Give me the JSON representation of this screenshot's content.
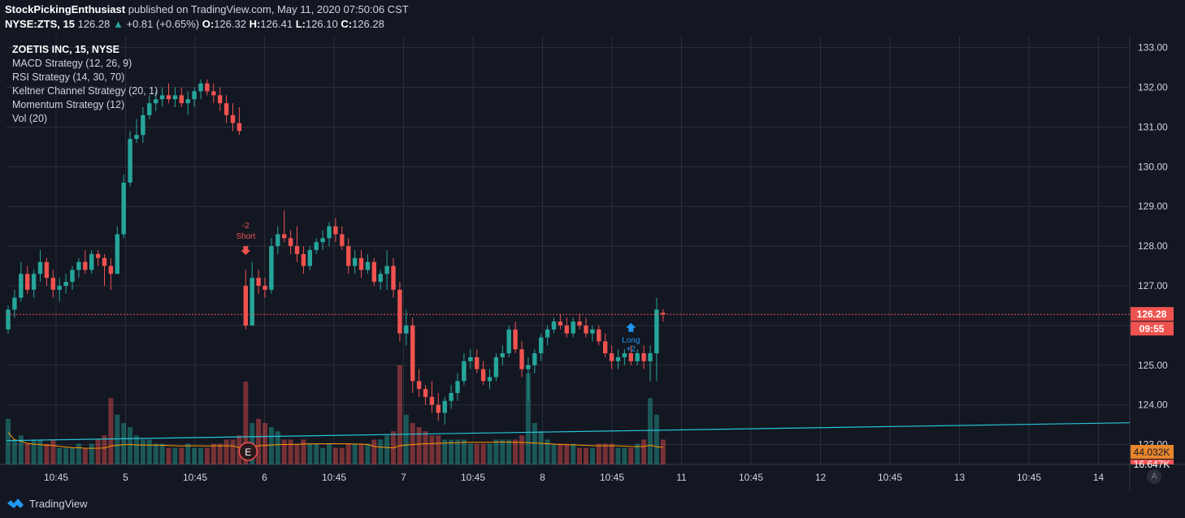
{
  "header": {
    "author": "StockPickingEnthusiast",
    "published_text": "published on TradingView.com, May 11, 2020 07:50:06 CST",
    "symbol": "NYSE:ZTS, 15",
    "last": "126.28",
    "change": "+0.81 (+0.65%)",
    "o_label": "O:",
    "o": "126.32",
    "h_label": "H:",
    "h": "126.41",
    "l_label": "L:",
    "l": "126.10",
    "c_label": "C:",
    "c": "126.28"
  },
  "legend": {
    "title": "ZOETIS INC, 15, NYSE",
    "items": [
      "MACD Strategy (12, 26, 9)",
      "RSI Strategy (14, 30, 70)",
      "Keltner Channel Strategy (20, 1)",
      "Momentum Strategy (12)",
      "Vol (20)"
    ]
  },
  "footer": {
    "brand": "TradingView",
    "settings_button": "A"
  },
  "colors": {
    "background": "#131722",
    "up": "#26a69a",
    "down": "#ef5350",
    "grid": "#2a2e39",
    "trendline": "#26c6da",
    "vol_ma": "#ff9800",
    "long_marker": "#2196f3",
    "short_marker": "#ef5350"
  },
  "chart_data": {
    "type": "candlestick",
    "ylim": [
      122.5,
      133.3
    ],
    "y_ticks": [
      "133.00",
      "132.00",
      "131.00",
      "130.00",
      "129.00",
      "128.00",
      "127.00",
      "126.00",
      "125.00",
      "124.00",
      "123.00"
    ],
    "x_ticks": [
      "10:45",
      "5",
      "10:45",
      "6",
      "10:45",
      "7",
      "10:45",
      "8",
      "10:45",
      "11",
      "10:45",
      "12",
      "10:45",
      "13",
      "10:45",
      "14"
    ],
    "last_price_label": "126.28",
    "countdown_label": "09:55",
    "volume_label": "44.032K",
    "volume_label2": "16.647K",
    "earnings_marker": "E",
    "signals": [
      {
        "type": "short",
        "label": "Short",
        "qty": "-2",
        "at_index": 37,
        "price": 128.0
      },
      {
        "type": "long",
        "label": "Long",
        "qty": "+2",
        "at_index": 97,
        "price": 125.9
      }
    ],
    "trendline": {
      "start_price": 123.1,
      "end_price": 123.55
    },
    "candles": [
      {
        "o": 125.9,
        "h": 126.5,
        "l": 125.8,
        "c": 126.4,
        "v": 0.55
      },
      {
        "o": 126.4,
        "h": 126.9,
        "l": 126.2,
        "c": 126.7,
        "v": 0.3
      },
      {
        "o": 126.7,
        "h": 127.6,
        "l": 126.6,
        "c": 127.3,
        "v": 0.35
      },
      {
        "o": 127.3,
        "h": 127.5,
        "l": 126.8,
        "c": 126.9,
        "v": 0.25
      },
      {
        "o": 126.9,
        "h": 127.4,
        "l": 126.7,
        "c": 127.3,
        "v": 0.3
      },
      {
        "o": 127.3,
        "h": 127.9,
        "l": 127.1,
        "c": 127.6,
        "v": 0.3
      },
      {
        "o": 127.6,
        "h": 127.7,
        "l": 127.0,
        "c": 127.2,
        "v": 0.25
      },
      {
        "o": 127.2,
        "h": 127.4,
        "l": 126.7,
        "c": 126.9,
        "v": 0.3
      },
      {
        "o": 126.9,
        "h": 127.2,
        "l": 126.6,
        "c": 127.0,
        "v": 0.2
      },
      {
        "o": 127.0,
        "h": 127.3,
        "l": 126.8,
        "c": 127.1,
        "v": 0.2
      },
      {
        "o": 127.1,
        "h": 127.5,
        "l": 126.9,
        "c": 127.4,
        "v": 0.2
      },
      {
        "o": 127.4,
        "h": 127.7,
        "l": 127.2,
        "c": 127.6,
        "v": 0.25
      },
      {
        "o": 127.6,
        "h": 127.9,
        "l": 127.3,
        "c": 127.4,
        "v": 0.2
      },
      {
        "o": 127.4,
        "h": 127.9,
        "l": 127.3,
        "c": 127.8,
        "v": 0.25
      },
      {
        "o": 127.8,
        "h": 127.9,
        "l": 127.5,
        "c": 127.7,
        "v": 0.3
      },
      {
        "o": 127.7,
        "h": 127.8,
        "l": 127.0,
        "c": 127.5,
        "v": 0.35
      },
      {
        "o": 127.5,
        "h": 127.7,
        "l": 126.9,
        "c": 127.3,
        "v": 0.8
      },
      {
        "o": 127.3,
        "h": 128.5,
        "l": 127.3,
        "c": 128.3,
        "v": 0.6
      },
      {
        "o": 128.3,
        "h": 129.8,
        "l": 128.2,
        "c": 129.6,
        "v": 0.5
      },
      {
        "o": 129.6,
        "h": 130.9,
        "l": 129.5,
        "c": 130.7,
        "v": 0.45
      },
      {
        "o": 130.7,
        "h": 131.2,
        "l": 130.6,
        "c": 130.8,
        "v": 0.35
      },
      {
        "o": 130.8,
        "h": 131.5,
        "l": 130.6,
        "c": 131.3,
        "v": 0.3
      },
      {
        "o": 131.3,
        "h": 131.8,
        "l": 131.2,
        "c": 131.6,
        "v": 0.3
      },
      {
        "o": 131.6,
        "h": 131.9,
        "l": 131.4,
        "c": 131.7,
        "v": 0.25
      },
      {
        "o": 131.7,
        "h": 132.0,
        "l": 131.5,
        "c": 131.8,
        "v": 0.25
      },
      {
        "o": 131.8,
        "h": 132.1,
        "l": 131.6,
        "c": 131.7,
        "v": 0.2
      },
      {
        "o": 131.7,
        "h": 132.0,
        "l": 131.5,
        "c": 131.8,
        "v": 0.2
      },
      {
        "o": 131.8,
        "h": 132.0,
        "l": 131.5,
        "c": 131.6,
        "v": 0.2
      },
      {
        "o": 131.6,
        "h": 131.9,
        "l": 131.3,
        "c": 131.7,
        "v": 0.25
      },
      {
        "o": 131.7,
        "h": 132.0,
        "l": 131.5,
        "c": 131.9,
        "v": 0.2
      },
      {
        "o": 131.9,
        "h": 132.2,
        "l": 131.7,
        "c": 132.1,
        "v": 0.2
      },
      {
        "o": 132.1,
        "h": 132.2,
        "l": 131.8,
        "c": 131.9,
        "v": 0.2
      },
      {
        "o": 131.9,
        "h": 132.1,
        "l": 131.6,
        "c": 131.8,
        "v": 0.25
      },
      {
        "o": 131.8,
        "h": 132.0,
        "l": 131.4,
        "c": 131.6,
        "v": 0.25
      },
      {
        "o": 131.6,
        "h": 131.8,
        "l": 131.1,
        "c": 131.3,
        "v": 0.3
      },
      {
        "o": 131.3,
        "h": 131.6,
        "l": 130.9,
        "c": 131.1,
        "v": 0.3
      },
      {
        "o": 131.1,
        "h": 131.5,
        "l": 130.8,
        "c": 130.9,
        "v": 0.35
      },
      {
        "o": 127.0,
        "h": 127.4,
        "l": 125.9,
        "c": 126.0,
        "v": 1.0
      },
      {
        "o": 126.0,
        "h": 127.6,
        "l": 126.0,
        "c": 127.2,
        "v": 0.5
      },
      {
        "o": 127.2,
        "h": 127.4,
        "l": 126.8,
        "c": 127.0,
        "v": 0.55
      },
      {
        "o": 127.0,
        "h": 127.2,
        "l": 126.7,
        "c": 126.9,
        "v": 0.5
      },
      {
        "o": 126.9,
        "h": 128.2,
        "l": 126.8,
        "c": 128.0,
        "v": 0.45
      },
      {
        "o": 128.0,
        "h": 128.5,
        "l": 127.8,
        "c": 128.3,
        "v": 0.4
      },
      {
        "o": 128.3,
        "h": 128.9,
        "l": 128.1,
        "c": 128.2,
        "v": 0.3
      },
      {
        "o": 128.2,
        "h": 128.4,
        "l": 127.8,
        "c": 128.0,
        "v": 0.3
      },
      {
        "o": 128.0,
        "h": 128.5,
        "l": 127.6,
        "c": 127.8,
        "v": 0.25
      },
      {
        "o": 127.8,
        "h": 128.0,
        "l": 127.3,
        "c": 127.5,
        "v": 0.3
      },
      {
        "o": 127.5,
        "h": 128.0,
        "l": 127.4,
        "c": 127.9,
        "v": 0.25
      },
      {
        "o": 127.9,
        "h": 128.2,
        "l": 127.8,
        "c": 128.1,
        "v": 0.25
      },
      {
        "o": 128.1,
        "h": 128.4,
        "l": 127.9,
        "c": 128.2,
        "v": 0.2
      },
      {
        "o": 128.2,
        "h": 128.6,
        "l": 128.0,
        "c": 128.5,
        "v": 0.25
      },
      {
        "o": 128.5,
        "h": 128.7,
        "l": 128.1,
        "c": 128.3,
        "v": 0.2
      },
      {
        "o": 128.3,
        "h": 128.5,
        "l": 127.9,
        "c": 128.0,
        "v": 0.2
      },
      {
        "o": 128.0,
        "h": 128.2,
        "l": 127.3,
        "c": 127.5,
        "v": 0.25
      },
      {
        "o": 127.5,
        "h": 127.9,
        "l": 127.3,
        "c": 127.7,
        "v": 0.25
      },
      {
        "o": 127.7,
        "h": 127.9,
        "l": 127.2,
        "c": 127.4,
        "v": 0.25
      },
      {
        "o": 127.4,
        "h": 127.8,
        "l": 127.3,
        "c": 127.6,
        "v": 0.25
      },
      {
        "o": 127.6,
        "h": 127.7,
        "l": 127.0,
        "c": 127.1,
        "v": 0.3
      },
      {
        "o": 127.1,
        "h": 127.4,
        "l": 126.9,
        "c": 127.3,
        "v": 0.3
      },
      {
        "o": 127.3,
        "h": 127.9,
        "l": 126.9,
        "c": 127.5,
        "v": 0.35
      },
      {
        "o": 127.5,
        "h": 127.7,
        "l": 126.7,
        "c": 126.9,
        "v": 0.4
      },
      {
        "o": 126.9,
        "h": 127.1,
        "l": 125.6,
        "c": 125.8,
        "v": 1.2
      },
      {
        "o": 125.8,
        "h": 126.4,
        "l": 125.5,
        "c": 126.0,
        "v": 0.6
      },
      {
        "o": 126.0,
        "h": 126.2,
        "l": 124.3,
        "c": 124.6,
        "v": 0.5
      },
      {
        "o": 124.6,
        "h": 124.9,
        "l": 124.2,
        "c": 124.4,
        "v": 0.45
      },
      {
        "o": 124.4,
        "h": 124.5,
        "l": 124.0,
        "c": 124.2,
        "v": 0.4
      },
      {
        "o": 124.2,
        "h": 124.6,
        "l": 123.8,
        "c": 124.0,
        "v": 0.35
      },
      {
        "o": 124.0,
        "h": 124.3,
        "l": 123.6,
        "c": 123.8,
        "v": 0.35
      },
      {
        "o": 123.8,
        "h": 124.2,
        "l": 123.5,
        "c": 124.1,
        "v": 0.3
      },
      {
        "o": 124.1,
        "h": 124.5,
        "l": 123.9,
        "c": 124.3,
        "v": 0.3
      },
      {
        "o": 124.3,
        "h": 124.8,
        "l": 124.1,
        "c": 124.6,
        "v": 0.3
      },
      {
        "o": 124.6,
        "h": 125.3,
        "l": 124.5,
        "c": 125.1,
        "v": 0.3
      },
      {
        "o": 125.1,
        "h": 125.4,
        "l": 124.9,
        "c": 125.2,
        "v": 0.25
      },
      {
        "o": 125.2,
        "h": 125.4,
        "l": 124.8,
        "c": 124.9,
        "v": 0.25
      },
      {
        "o": 124.9,
        "h": 125.1,
        "l": 124.5,
        "c": 124.6,
        "v": 0.25
      },
      {
        "o": 124.6,
        "h": 124.9,
        "l": 124.4,
        "c": 124.7,
        "v": 0.25
      },
      {
        "o": 124.7,
        "h": 125.3,
        "l": 124.6,
        "c": 125.2,
        "v": 0.3
      },
      {
        "o": 125.2,
        "h": 125.5,
        "l": 125.0,
        "c": 125.3,
        "v": 0.3
      },
      {
        "o": 125.3,
        "h": 126.0,
        "l": 125.2,
        "c": 125.9,
        "v": 0.3
      },
      {
        "o": 125.9,
        "h": 126.1,
        "l": 125.3,
        "c": 125.4,
        "v": 0.3
      },
      {
        "o": 125.4,
        "h": 125.6,
        "l": 124.7,
        "c": 124.9,
        "v": 0.35
      },
      {
        "o": 124.9,
        "h": 125.2,
        "l": 124.1,
        "c": 125.0,
        "v": 1.1
      },
      {
        "o": 125.0,
        "h": 125.4,
        "l": 124.8,
        "c": 125.3,
        "v": 0.5
      },
      {
        "o": 125.3,
        "h": 125.8,
        "l": 125.1,
        "c": 125.7,
        "v": 0.4
      },
      {
        "o": 125.7,
        "h": 126.0,
        "l": 125.5,
        "c": 125.9,
        "v": 0.3
      },
      {
        "o": 125.9,
        "h": 126.2,
        "l": 125.8,
        "c": 126.1,
        "v": 0.25
      },
      {
        "o": 126.1,
        "h": 126.3,
        "l": 125.9,
        "c": 126.0,
        "v": 0.25
      },
      {
        "o": 126.0,
        "h": 126.2,
        "l": 125.7,
        "c": 125.8,
        "v": 0.25
      },
      {
        "o": 125.8,
        "h": 126.2,
        "l": 125.7,
        "c": 126.1,
        "v": 0.25
      },
      {
        "o": 126.1,
        "h": 126.3,
        "l": 125.9,
        "c": 126.0,
        "v": 0.2
      },
      {
        "o": 126.0,
        "h": 126.2,
        "l": 125.7,
        "c": 125.8,
        "v": 0.2
      },
      {
        "o": 125.8,
        "h": 126.0,
        "l": 125.6,
        "c": 125.9,
        "v": 0.2
      },
      {
        "o": 125.9,
        "h": 126.0,
        "l": 125.5,
        "c": 125.6,
        "v": 0.25
      },
      {
        "o": 125.6,
        "h": 125.8,
        "l": 125.2,
        "c": 125.3,
        "v": 0.25
      },
      {
        "o": 125.3,
        "h": 125.5,
        "l": 124.9,
        "c": 125.1,
        "v": 0.25
      },
      {
        "o": 125.1,
        "h": 125.4,
        "l": 124.9,
        "c": 125.2,
        "v": 0.2
      },
      {
        "o": 125.2,
        "h": 125.4,
        "l": 125.0,
        "c": 125.3,
        "v": 0.2
      },
      {
        "o": 125.3,
        "h": 125.5,
        "l": 125.0,
        "c": 125.1,
        "v": 0.2
      },
      {
        "o": 125.1,
        "h": 125.4,
        "l": 125.0,
        "c": 125.3,
        "v": 0.25
      },
      {
        "o": 125.3,
        "h": 125.5,
        "l": 124.9,
        "c": 125.1,
        "v": 0.3
      },
      {
        "o": 125.1,
        "h": 125.5,
        "l": 124.6,
        "c": 125.3,
        "v": 0.8
      },
      {
        "o": 125.3,
        "h": 126.7,
        "l": 124.6,
        "c": 126.4,
        "v": 0.6
      },
      {
        "o": 126.32,
        "h": 126.41,
        "l": 126.1,
        "c": 126.28,
        "v": 0.3
      }
    ]
  }
}
